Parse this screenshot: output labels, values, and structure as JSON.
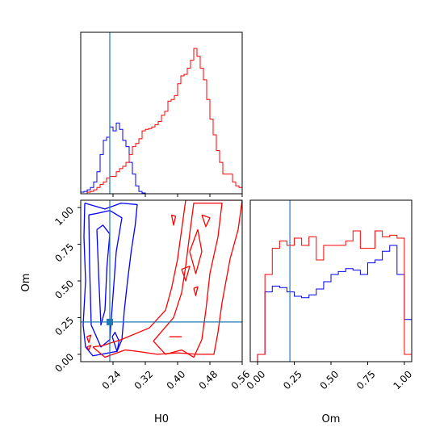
{
  "chart_data": [
    {
      "type": "histogram",
      "panel": "H0 marginal",
      "x": [
        0.16,
        0.168,
        0.176,
        0.184,
        0.192,
        0.2,
        0.208,
        0.216,
        0.224,
        0.232,
        0.24,
        0.248,
        0.256,
        0.264,
        0.272,
        0.28,
        0.288,
        0.296,
        0.304,
        0.312,
        0.32,
        0.328,
        0.336,
        0.344,
        0.352,
        0.36,
        0.368,
        0.376,
        0.384,
        0.392,
        0.4,
        0.408,
        0.416,
        0.424,
        0.432,
        0.44,
        0.448,
        0.456,
        0.464,
        0.472,
        0.48,
        0.488,
        0.496,
        0.504,
        0.512,
        0.52,
        0.528,
        0.536,
        0.544,
        0.552
      ],
      "xlim": [
        0.16,
        0.56
      ],
      "series": [
        {
          "color": "#0000ff",
          "values": [
            2,
            3,
            5,
            8,
            15,
            28,
            50,
            68,
            72,
            85,
            80,
            90,
            82,
            68,
            60,
            40,
            25,
            10,
            3,
            1,
            0,
            0,
            0,
            0,
            0,
            0,
            0,
            0,
            0,
            0,
            0,
            0,
            0,
            0,
            0,
            0,
            0,
            0,
            0,
            0,
            0,
            0,
            0,
            0,
            0,
            0,
            0,
            0,
            0,
            0
          ]
        },
        {
          "color": "#ff0000",
          "values": [
            0,
            0,
            2,
            3,
            5,
            8,
            12,
            15,
            20,
            22,
            22,
            28,
            32,
            35,
            40,
            50,
            60,
            64,
            70,
            80,
            82,
            83,
            85,
            88,
            92,
            100,
            105,
            118,
            120,
            125,
            140,
            150,
            152,
            160,
            170,
            185,
            175,
            160,
            145,
            120,
            95,
            75,
            55,
            40,
            25,
            25,
            25,
            15,
            10,
            8
          ]
        }
      ],
      "truth_line": 0.232
    },
    {
      "type": "histogram",
      "panel": "Om marginal",
      "x": [
        0.0,
        0.05,
        0.1,
        0.15,
        0.2,
        0.25,
        0.3,
        0.35,
        0.4,
        0.45,
        0.5,
        0.55,
        0.6,
        0.65,
        0.7,
        0.75,
        0.8,
        0.85,
        0.9,
        0.95,
        1.0
      ],
      "xlim": [
        -0.05,
        1.05
      ],
      "series": [
        {
          "color": "#0000ff",
          "values": [
            0.05,
            0.48,
            0.52,
            0.51,
            0.48,
            0.45,
            0.44,
            0.46,
            0.5,
            0.55,
            0.6,
            0.62,
            0.64,
            0.63,
            0.6,
            0.68,
            0.7,
            0.76,
            0.8,
            0.6,
            0.29
          ]
        },
        {
          "color": "#ff0000",
          "values": [
            0.05,
            0.6,
            0.78,
            0.83,
            0.8,
            0.85,
            0.8,
            0.86,
            0.7,
            0.8,
            0.8,
            0.8,
            0.83,
            0.9,
            0.78,
            0.78,
            0.9,
            0.86,
            0.87,
            0.85,
            0.05
          ]
        }
      ],
      "truth_line": 0.22
    },
    {
      "type": "contour",
      "panel": "H0 vs Om joint",
      "xlim": [
        0.16,
        0.56
      ],
      "ylim": [
        -0.05,
        1.05
      ],
      "truth": [
        0.232,
        0.22
      ],
      "series": [
        {
          "color": "#0000ff",
          "contours": [
            [
              [
                0.17,
                1.03
              ],
              [
                0.168,
                0.8
              ],
              [
                0.172,
                0.5
              ],
              [
                0.166,
                0.2
              ],
              [
                0.172,
                0.05
              ],
              [
                0.19,
                -0.01
              ],
              [
                0.25,
                0.02
              ],
              [
                0.262,
                0.1
              ],
              [
                0.268,
                0.3
              ],
              [
                0.276,
                0.5
              ],
              [
                0.285,
                0.7
              ],
              [
                0.295,
                0.88
              ],
              [
                0.3,
                1.02
              ],
              [
                0.26,
                1.03
              ],
              [
                0.22,
                0.99
              ],
              [
                0.17,
                1.03
              ]
            ],
            [
              [
                0.18,
                0.95
              ],
              [
                0.182,
                0.6
              ],
              [
                0.186,
                0.2
              ],
              [
                0.21,
                0.05
              ],
              [
                0.232,
                0.1
              ],
              [
                0.24,
                0.4
              ],
              [
                0.248,
                0.7
              ],
              [
                0.262,
                0.93
              ],
              [
                0.232,
                0.98
              ],
              [
                0.2,
                0.96
              ],
              [
                0.18,
                0.95
              ]
            ],
            [
              [
                0.2,
                0.85
              ],
              [
                0.205,
                0.5
              ],
              [
                0.21,
                0.2
              ],
              [
                0.22,
                0.3
              ],
              [
                0.225,
                0.6
              ],
              [
                0.232,
                0.82
              ],
              [
                0.215,
                0.88
              ],
              [
                0.2,
                0.85
              ]
            ],
            [
              [
                0.238,
                0.12
              ],
              [
                0.25,
                0.02
              ],
              [
                0.255,
                0.09
              ],
              [
                0.245,
                0.15
              ],
              [
                0.238,
                0.12
              ]
            ]
          ]
        },
        {
          "color": "#ff0000",
          "contours": [
            [
              [
                0.19,
                0.05
              ],
              [
                0.22,
                -0.02
              ],
              [
                0.27,
                0.03
              ],
              [
                0.3,
                0.02
              ],
              [
                0.35,
                0.0
              ],
              [
                0.4,
                0.01
              ],
              [
                0.45,
                0.0
              ],
              [
                0.49,
                0.0
              ],
              [
                0.5,
                0.15
              ],
              [
                0.51,
                0.35
              ],
              [
                0.53,
                0.65
              ],
              [
                0.55,
                0.85
              ],
              [
                0.56,
                1.05
              ],
              [
                0.42,
                1.05
              ],
              [
                0.41,
                0.85
              ],
              [
                0.4,
                0.65
              ],
              [
                0.385,
                0.45
              ],
              [
                0.37,
                0.3
              ],
              [
                0.33,
                0.18
              ],
              [
                0.26,
                0.1
              ],
              [
                0.215,
                0.06
              ],
              [
                0.19,
                0.05
              ]
            ],
            [
              [
                0.34,
                0.09
              ],
              [
                0.37,
                0.0
              ],
              [
                0.41,
                0.03
              ],
              [
                0.44,
                -0.02
              ],
              [
                0.46,
                0.1
              ],
              [
                0.47,
                0.3
              ],
              [
                0.48,
                0.55
              ],
              [
                0.5,
                0.8
              ],
              [
                0.51,
                1.03
              ],
              [
                0.44,
                1.03
              ],
              [
                0.43,
                0.82
              ],
              [
                0.42,
                0.6
              ],
              [
                0.41,
                0.42
              ],
              [
                0.39,
                0.25
              ],
              [
                0.34,
                0.09
              ]
            ],
            [
              [
                0.43,
                0.7
              ],
              [
                0.445,
                0.55
              ],
              [
                0.46,
                0.7
              ],
              [
                0.45,
                0.85
              ],
              [
                0.43,
                0.7
              ]
            ],
            [
              [
                0.41,
                0.58
              ],
              [
                0.42,
                0.5
              ],
              [
                0.43,
                0.6
              ],
              [
                0.41,
                0.58
              ]
            ],
            [
              [
                0.385,
                0.95
              ],
              [
                0.39,
                0.88
              ],
              [
                0.395,
                0.94
              ],
              [
                0.385,
                0.95
              ]
            ],
            [
              [
                0.46,
                0.95
              ],
              [
                0.47,
                0.87
              ],
              [
                0.48,
                0.93
              ],
              [
                0.46,
                0.95
              ]
            ],
            [
              [
                0.44,
                0.45
              ],
              [
                0.445,
                0.4
              ],
              [
                0.45,
                0.46
              ],
              [
                0.44,
                0.45
              ]
            ],
            [
              [
                0.38,
                0.12
              ],
              [
                0.41,
                0.12
              ]
            ],
            [
              [
                0.175,
                0.05
              ],
              [
                0.18,
                0.03
              ],
              [
                0.185,
                0.06
              ],
              [
                0.175,
                0.05
              ]
            ],
            [
              [
                0.175,
                0.12
              ],
              [
                0.18,
                0.08
              ],
              [
                0.185,
                0.13
              ],
              [
                0.175,
                0.12
              ]
            ]
          ]
        }
      ]
    }
  ],
  "axes": {
    "x_label_1": "H0",
    "x_label_2": "Om",
    "y_label": "Om",
    "h0_ticks": [
      "0.24",
      "0.32",
      "0.40",
      "0.48",
      "0.56"
    ],
    "om_ticks": [
      "0.00",
      "0.25",
      "0.50",
      "0.75",
      "1.00"
    ]
  }
}
